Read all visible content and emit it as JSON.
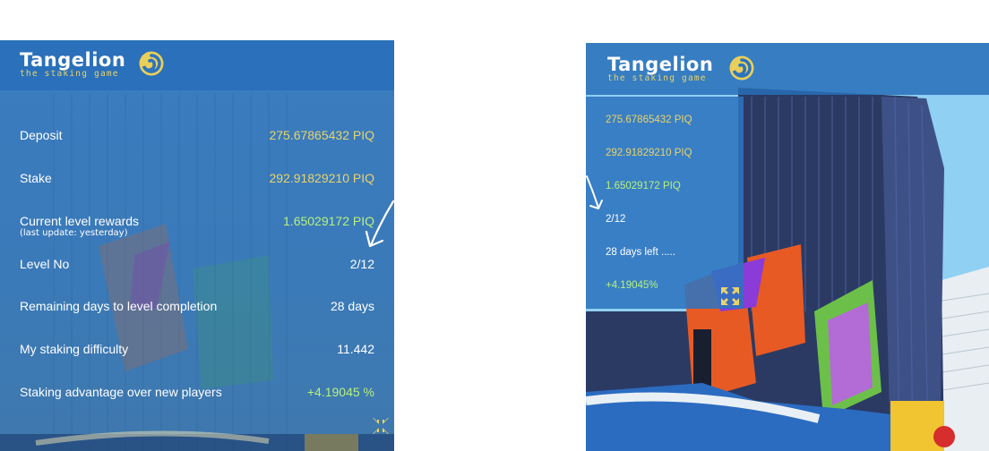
{
  "brand": {
    "title": "Tangelion",
    "subtitle": "the staking game"
  },
  "detail_panel": {
    "rows": [
      {
        "label": "Deposit",
        "value": "275.67865432 PIQ"
      },
      {
        "label": "Stake",
        "value": "292.91829210 PIQ"
      },
      {
        "label": "Current level rewards",
        "note": "(last update: yesterday)",
        "value": "1.65029172 PIQ"
      },
      {
        "label": "Level No",
        "value": "2/12"
      },
      {
        "label": "Remaining days to level completion",
        "value": "28 days"
      },
      {
        "label": "My staking difficulty",
        "value": "11.442"
      },
      {
        "label": "Staking advantage over new players",
        "value": "+4.19045 %"
      }
    ]
  },
  "compact_panel": {
    "items": [
      "275.67865432 PIQ",
      "292.91829210 PIQ",
      "1.65029172 PIQ",
      "2/12",
      "28 days left .....",
      "+4.19045%"
    ]
  },
  "colors": {
    "accent_yellow": "#e8d36a",
    "accent_green": "#b6f07d",
    "panel_blue": "#3a7cc0"
  },
  "icons": {
    "logo": "orange-swirl-icon",
    "collapse": "collapse-arrows-icon",
    "expand": "expand-arrows-icon"
  }
}
